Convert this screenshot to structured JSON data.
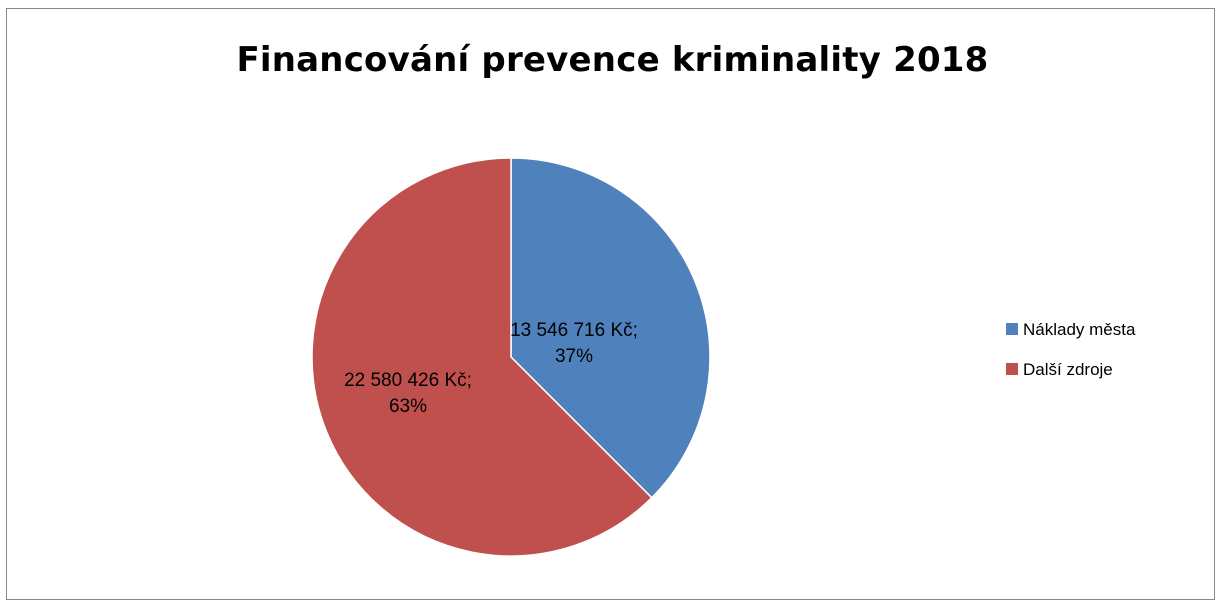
{
  "chart_data": {
    "type": "pie",
    "title": "Financování prevence kriminality 2018",
    "slices": [
      {
        "name": "Náklady města",
        "value": 13546716,
        "label_value": "13 546 716 Kč;",
        "label_pct": "37%",
        "color": "#4F81BD"
      },
      {
        "name": "Další zdroje",
        "value": 22580426,
        "label_value": "22 580 426 Kč;",
        "label_pct": "63%",
        "color": "#C0504D"
      }
    ],
    "legend_position": "right"
  }
}
